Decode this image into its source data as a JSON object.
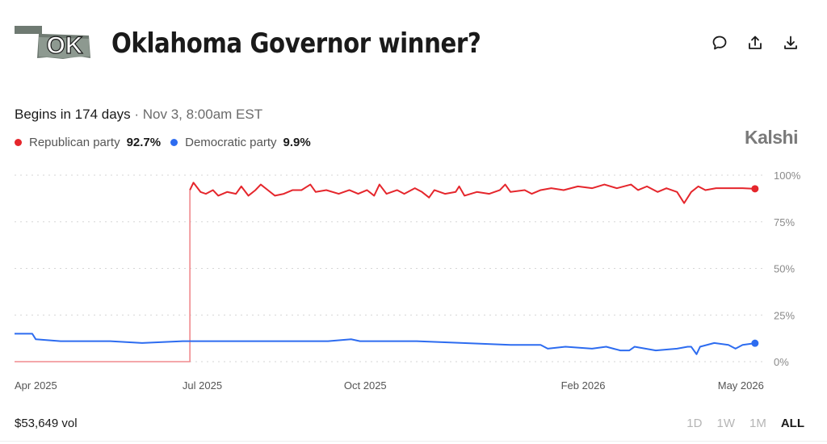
{
  "header": {
    "logo_text": "OK",
    "title": "Oklahoma Governor winner?"
  },
  "icons": [
    "comment-icon",
    "share-icon",
    "download-icon"
  ],
  "status": {
    "begins": "Begins in 174 days",
    "separator": " · ",
    "date": "Nov 3, 8:00am EST"
  },
  "legend": [
    {
      "name": "Republican party",
      "value": "92.7%",
      "color": "#e5262c"
    },
    {
      "name": "Democratic party",
      "value": "9.9%",
      "color": "#2d6cf0"
    }
  ],
  "brand": "Kalshi",
  "footer": {
    "volume": "$53,649 vol",
    "ranges": [
      "1D",
      "1W",
      "1M",
      "ALL"
    ],
    "active_range": "ALL"
  },
  "chart_data": {
    "type": "line",
    "x_tick_labels": [
      "Apr 2025",
      "Jul 2025",
      "Oct 2025",
      "Feb 2026",
      "May 2026"
    ],
    "y_tick_labels": [
      "100%",
      "75%",
      "50%",
      "25%",
      "0%"
    ],
    "ylim": [
      0,
      100
    ],
    "grid": true,
    "legend_position": "top-left",
    "x_domain": [
      "2025-03-17",
      "2026-05-15"
    ],
    "series": [
      {
        "name": "Republican party",
        "color": "#e5262c",
        "points": [
          [
            "2025-03-17",
            0
          ],
          [
            "2025-06-24",
            0
          ],
          [
            "2025-06-24",
            92
          ],
          [
            "2025-06-26",
            96
          ],
          [
            "2025-06-30",
            91
          ],
          [
            "2025-07-03",
            90
          ],
          [
            "2025-07-07",
            92
          ],
          [
            "2025-07-10",
            89
          ],
          [
            "2025-07-15",
            91
          ],
          [
            "2025-07-20",
            90
          ],
          [
            "2025-07-23",
            94
          ],
          [
            "2025-07-27",
            89
          ],
          [
            "2025-07-31",
            92
          ],
          [
            "2025-08-03",
            95
          ],
          [
            "2025-08-07",
            92
          ],
          [
            "2025-08-11",
            89
          ],
          [
            "2025-08-16",
            90
          ],
          [
            "2025-08-21",
            92
          ],
          [
            "2025-08-26",
            92
          ],
          [
            "2025-08-31",
            95
          ],
          [
            "2025-09-03",
            91
          ],
          [
            "2025-09-09",
            92
          ],
          [
            "2025-09-16",
            90
          ],
          [
            "2025-09-22",
            92
          ],
          [
            "2025-09-27",
            90
          ],
          [
            "2025-10-02",
            92
          ],
          [
            "2025-10-06",
            89
          ],
          [
            "2025-10-09",
            95
          ],
          [
            "2025-10-13",
            90
          ],
          [
            "2025-10-19",
            92
          ],
          [
            "2025-10-23",
            90
          ],
          [
            "2025-10-29",
            93
          ],
          [
            "2025-11-02",
            91
          ],
          [
            "2025-11-06",
            88
          ],
          [
            "2025-11-09",
            92
          ],
          [
            "2025-11-15",
            90
          ],
          [
            "2025-11-21",
            91
          ],
          [
            "2025-11-23",
            94
          ],
          [
            "2025-11-26",
            89
          ],
          [
            "2025-12-03",
            91
          ],
          [
            "2025-12-10",
            90
          ],
          [
            "2025-12-16",
            92
          ],
          [
            "2025-12-19",
            95
          ],
          [
            "2025-12-22",
            91
          ],
          [
            "2025-12-30",
            92
          ],
          [
            "2026-01-03",
            90
          ],
          [
            "2026-01-08",
            92
          ],
          [
            "2026-01-14",
            93
          ],
          [
            "2026-01-21",
            92
          ],
          [
            "2026-01-29",
            94
          ],
          [
            "2026-02-06",
            93
          ],
          [
            "2026-02-13",
            95
          ],
          [
            "2026-02-20",
            93
          ],
          [
            "2026-02-28",
            95
          ],
          [
            "2026-03-04",
            92
          ],
          [
            "2026-03-09",
            94
          ],
          [
            "2026-03-15",
            91
          ],
          [
            "2026-03-20",
            93
          ],
          [
            "2026-03-26",
            91
          ],
          [
            "2026-03-30",
            85
          ],
          [
            "2026-04-03",
            91
          ],
          [
            "2026-04-07",
            94
          ],
          [
            "2026-04-11",
            92
          ],
          [
            "2026-04-17",
            93
          ],
          [
            "2026-04-24",
            93
          ],
          [
            "2026-05-02",
            93
          ],
          [
            "2026-05-09",
            92.7
          ]
        ]
      },
      {
        "name": "Democratic party",
        "color": "#2d6cf0",
        "points": [
          [
            "2025-03-17",
            15
          ],
          [
            "2025-03-27",
            15
          ],
          [
            "2025-03-29",
            12
          ],
          [
            "2025-04-12",
            11
          ],
          [
            "2025-05-10",
            11
          ],
          [
            "2025-05-28",
            10
          ],
          [
            "2025-06-20",
            11
          ],
          [
            "2025-07-22",
            11
          ],
          [
            "2025-08-20",
            11
          ],
          [
            "2025-09-10",
            11
          ],
          [
            "2025-09-23",
            12
          ],
          [
            "2025-09-28",
            11
          ],
          [
            "2025-10-30",
            11
          ],
          [
            "2025-11-25",
            10
          ],
          [
            "2025-12-22",
            9
          ],
          [
            "2026-01-08",
            9
          ],
          [
            "2026-01-12",
            7
          ],
          [
            "2026-01-22",
            8
          ],
          [
            "2026-02-06",
            7
          ],
          [
            "2026-02-14",
            8
          ],
          [
            "2026-02-22",
            6
          ],
          [
            "2026-02-27",
            6
          ],
          [
            "2026-03-02",
            8
          ],
          [
            "2026-03-14",
            6
          ],
          [
            "2026-03-26",
            7
          ],
          [
            "2026-04-01",
            8
          ],
          [
            "2026-04-03",
            8
          ],
          [
            "2026-04-06",
            4
          ],
          [
            "2026-04-08",
            8
          ],
          [
            "2026-04-16",
            10
          ],
          [
            "2026-04-24",
            9
          ],
          [
            "2026-04-28",
            7
          ],
          [
            "2026-05-02",
            9
          ],
          [
            "2026-05-09",
            9.9
          ]
        ]
      }
    ]
  }
}
